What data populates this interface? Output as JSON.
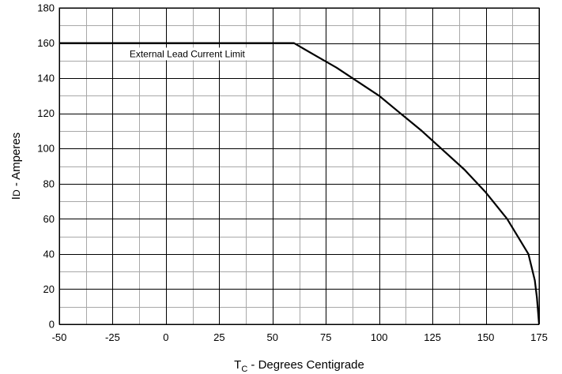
{
  "chart_data": {
    "type": "line",
    "title": "",
    "xlabel": {
      "main": "T",
      "sub": "C",
      "rest": " - Degrees Centigrade"
    },
    "ylabel": {
      "main": "I",
      "sub": "D",
      "rest": " - Amperes"
    },
    "xlim": [
      -50,
      175
    ],
    "ylim": [
      0,
      180
    ],
    "xticks": [
      -50,
      -25,
      0,
      25,
      50,
      75,
      100,
      125,
      150,
      175
    ],
    "yticks": [
      0,
      20,
      40,
      60,
      80,
      100,
      120,
      140,
      160,
      180
    ],
    "x_minor_step": 12.5,
    "y_minor_step": 10,
    "grid": true,
    "series": [
      {
        "name": "",
        "x": [
          -50,
          60,
          70,
          80,
          90,
          100,
          110,
          120,
          130,
          140,
          150,
          160,
          165,
          170,
          173,
          174,
          175
        ],
        "y": [
          160,
          160,
          153,
          146,
          138,
          130,
          120,
          110,
          99,
          88,
          75,
          60,
          50,
          40,
          25,
          15,
          0
        ]
      }
    ],
    "annotations": [
      {
        "text": "External Lead Current Limit",
        "x": 10,
        "y": 152
      }
    ]
  }
}
